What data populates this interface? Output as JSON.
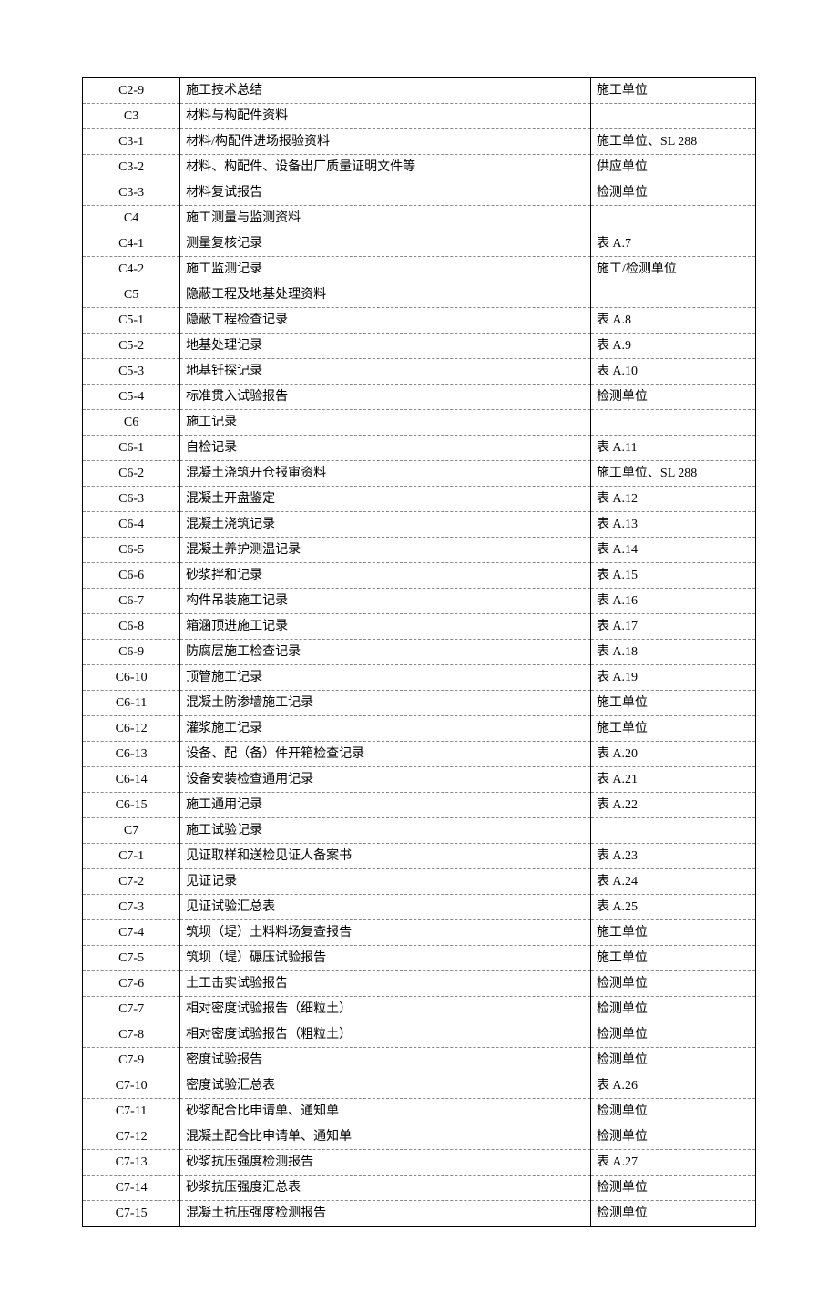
{
  "table": {
    "type": "table",
    "background_color": "#ffffff",
    "border_color": "#000000",
    "dash_border_color": "#888888",
    "font_size": 14,
    "font_family": "SimSun",
    "columns": [
      {
        "key": "code",
        "width_pct": 14.5,
        "align": "center"
      },
      {
        "key": "desc",
        "width_pct": 61,
        "align": "left"
      },
      {
        "key": "ref",
        "width_pct": 24.5,
        "align": "left"
      }
    ],
    "rows": [
      {
        "code": "C2-9",
        "desc": "施工技术总结",
        "ref": "施工单位"
      },
      {
        "code": "C3",
        "desc": "材料与构配件资料",
        "ref": ""
      },
      {
        "code": "C3-1",
        "desc": "材料/构配件进场报验资料",
        "ref": "施工单位、SL 288"
      },
      {
        "code": "C3-2",
        "desc": "材料、构配件、设备出厂质量证明文件等",
        "ref": "供应单位"
      },
      {
        "code": "C3-3",
        "desc": "材料复试报告",
        "ref": "检测单位"
      },
      {
        "code": "C4",
        "desc": "施工测量与监测资料",
        "ref": ""
      },
      {
        "code": "C4-1",
        "desc": "测量复核记录",
        "ref": "表 A.7"
      },
      {
        "code": "C4-2",
        "desc": "施工监测记录",
        "ref": "施工/检测单位"
      },
      {
        "code": "C5",
        "desc": "隐蔽工程及地基处理资料",
        "ref": ""
      },
      {
        "code": "C5-1",
        "desc": "隐蔽工程检查记录",
        "ref": "表 A.8"
      },
      {
        "code": "C5-2",
        "desc": "地基处理记录",
        "ref": "表 A.9"
      },
      {
        "code": "C5-3",
        "desc": "地基钎探记录",
        "ref": "表 A.10"
      },
      {
        "code": "C5-4",
        "desc": "标准贯入试验报告",
        "ref": "检测单位"
      },
      {
        "code": "C6",
        "desc": "施工记录",
        "ref": ""
      },
      {
        "code": "C6-1",
        "desc": "自检记录",
        "ref": "表 A.11"
      },
      {
        "code": "C6-2",
        "desc": "混凝土浇筑开仓报审资料",
        "ref": "施工单位、SL 288"
      },
      {
        "code": "C6-3",
        "desc": "混凝土开盘鉴定",
        "ref": "表 A.12"
      },
      {
        "code": "C6-4",
        "desc": "混凝土浇筑记录",
        "ref": "表 A.13"
      },
      {
        "code": "C6-5",
        "desc": "混凝土养护测温记录",
        "ref": "表 A.14"
      },
      {
        "code": "C6-6",
        "desc": "砂浆拌和记录",
        "ref": "表 A.15"
      },
      {
        "code": "C6-7",
        "desc": "构件吊装施工记录",
        "ref": "表 A.16"
      },
      {
        "code": "C6-8",
        "desc": "箱涵顶进施工记录",
        "ref": "表 A.17"
      },
      {
        "code": "C6-9",
        "desc": "防腐层施工检查记录",
        "ref": "表 A.18"
      },
      {
        "code": "C6-10",
        "desc": "顶管施工记录",
        "ref": "表 A.19"
      },
      {
        "code": "C6-11",
        "desc": "混凝土防渗墙施工记录",
        "ref": "施工单位"
      },
      {
        "code": "C6-12",
        "desc": "灌浆施工记录",
        "ref": "施工单位"
      },
      {
        "code": "C6-13",
        "desc": "设备、配（备）件开箱检查记录",
        "ref": "表 A.20"
      },
      {
        "code": "C6-14",
        "desc": "设备安装检查通用记录",
        "ref": "表 A.21"
      },
      {
        "code": "C6-15",
        "desc": "施工通用记录",
        "ref": "表 A.22"
      },
      {
        "code": "C7",
        "desc": "施工试验记录",
        "ref": ""
      },
      {
        "code": "C7-1",
        "desc": "见证取样和送检见证人备案书",
        "ref": "表 A.23"
      },
      {
        "code": "C7-2",
        "desc": "见证记录",
        "ref": "表 A.24"
      },
      {
        "code": "C7-3",
        "desc": "见证试验汇总表",
        "ref": "表 A.25"
      },
      {
        "code": "C7-4",
        "desc": "筑坝（堤）土料料场复查报告",
        "ref": "施工单位"
      },
      {
        "code": "C7-5",
        "desc": "筑坝（堤）碾压试验报告",
        "ref": "施工单位"
      },
      {
        "code": "C7-6",
        "desc": "土工击实试验报告",
        "ref": "检测单位"
      },
      {
        "code": "C7-7",
        "desc": "相对密度试验报告（细粒土）",
        "ref": "检测单位"
      },
      {
        "code": "C7-8",
        "desc": "相对密度试验报告（粗粒土）",
        "ref": "检测单位"
      },
      {
        "code": "C7-9",
        "desc": "密度试验报告",
        "ref": "检测单位"
      },
      {
        "code": "C7-10",
        "desc": "密度试验汇总表",
        "ref": "表 A.26"
      },
      {
        "code": "C7-11",
        "desc": "砂浆配合比申请单、通知单",
        "ref": "检测单位"
      },
      {
        "code": "C7-12",
        "desc": "混凝土配合比申请单、通知单",
        "ref": "检测单位"
      },
      {
        "code": "C7-13",
        "desc": "砂浆抗压强度检测报告",
        "ref": "表 A.27"
      },
      {
        "code": "C7-14",
        "desc": "砂浆抗压强度汇总表",
        "ref": "检测单位"
      },
      {
        "code": "C7-15",
        "desc": "混凝土抗压强度检测报告",
        "ref": "检测单位"
      }
    ]
  }
}
